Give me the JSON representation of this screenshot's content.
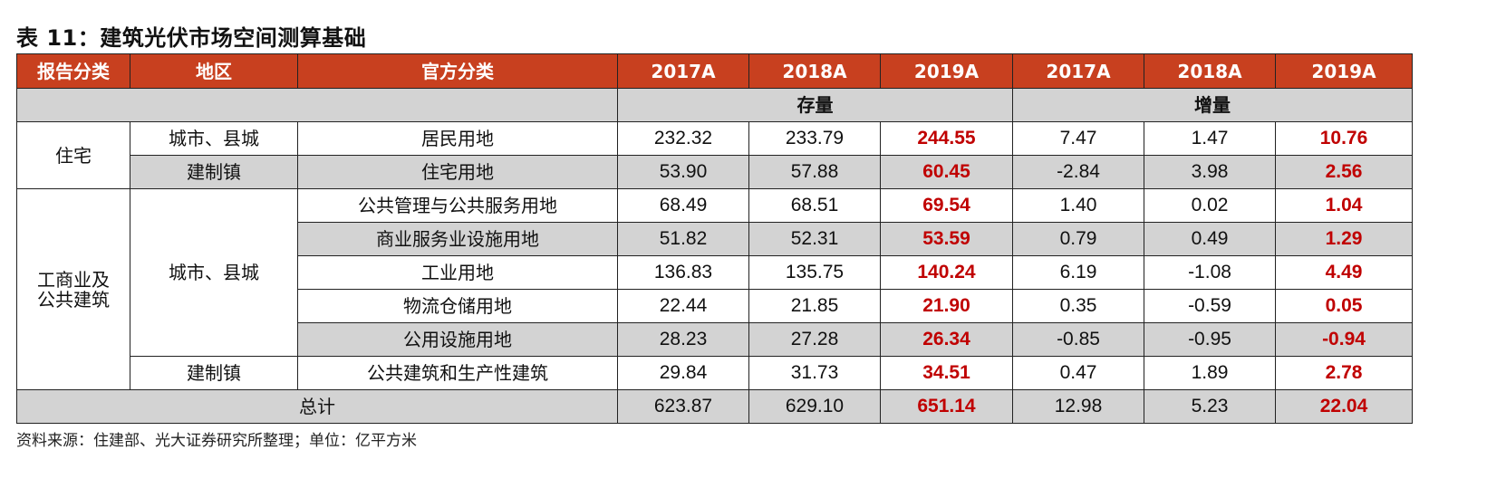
{
  "title": "表 11：建筑光伏市场空间测算基础",
  "header": {
    "columns": [
      "报告分类",
      "地区",
      "官方分类",
      "2017A",
      "2018A",
      "2019A",
      "2017A",
      "2018A",
      "2019A"
    ]
  },
  "subheader": {
    "stock": "存量",
    "increase": "增量"
  },
  "groups": {
    "residential": "住宅",
    "commercial_line1": "工商业及",
    "commercial_line2": "公共建筑"
  },
  "regions": {
    "city_county_1": "城市、县城",
    "town_1": "建制镇",
    "city_county_2": "城市、县城",
    "town_2": "建制镇"
  },
  "rows": [
    {
      "category": "居民用地",
      "stock": [
        "232.32",
        "233.79",
        "244.55"
      ],
      "increase": [
        "7.47",
        "1.47",
        "10.76"
      ]
    },
    {
      "category": "住宅用地",
      "stock": [
        "53.90",
        "57.88",
        "60.45"
      ],
      "increase": [
        "-2.84",
        "3.98",
        "2.56"
      ]
    },
    {
      "category": "公共管理与公共服务用地",
      "stock": [
        "68.49",
        "68.51",
        "69.54"
      ],
      "increase": [
        "1.40",
        "0.02",
        "1.04"
      ]
    },
    {
      "category": "商业服务业设施用地",
      "stock": [
        "51.82",
        "52.31",
        "53.59"
      ],
      "increase": [
        "0.79",
        "0.49",
        "1.29"
      ]
    },
    {
      "category": "工业用地",
      "stock": [
        "136.83",
        "135.75",
        "140.24"
      ],
      "increase": [
        "6.19",
        "-1.08",
        "4.49"
      ]
    },
    {
      "category": "物流仓储用地",
      "stock": [
        "22.44",
        "21.85",
        "21.90"
      ],
      "increase": [
        "0.35",
        "-0.59",
        "0.05"
      ]
    },
    {
      "category": "公用设施用地",
      "stock": [
        "28.23",
        "27.28",
        "26.34"
      ],
      "increase": [
        "-0.85",
        "-0.95",
        "-0.94"
      ]
    },
    {
      "category": "公共建筑和生产性建筑",
      "stock": [
        "29.84",
        "31.73",
        "34.51"
      ],
      "increase": [
        "0.47",
        "1.89",
        "2.78"
      ]
    }
  ],
  "total": {
    "label": "总计",
    "stock": [
      "623.87",
      "629.10",
      "651.14"
    ],
    "increase": [
      "12.98",
      "5.23",
      "22.04"
    ]
  },
  "source": "资料来源：住建部、光大证券研究所整理；单位：亿平方米",
  "colors": {
    "header_bg": "#c8401f",
    "header_text": "#ffffff",
    "highlight_value": "#c00000",
    "shaded_row": "#d3d3d3"
  }
}
